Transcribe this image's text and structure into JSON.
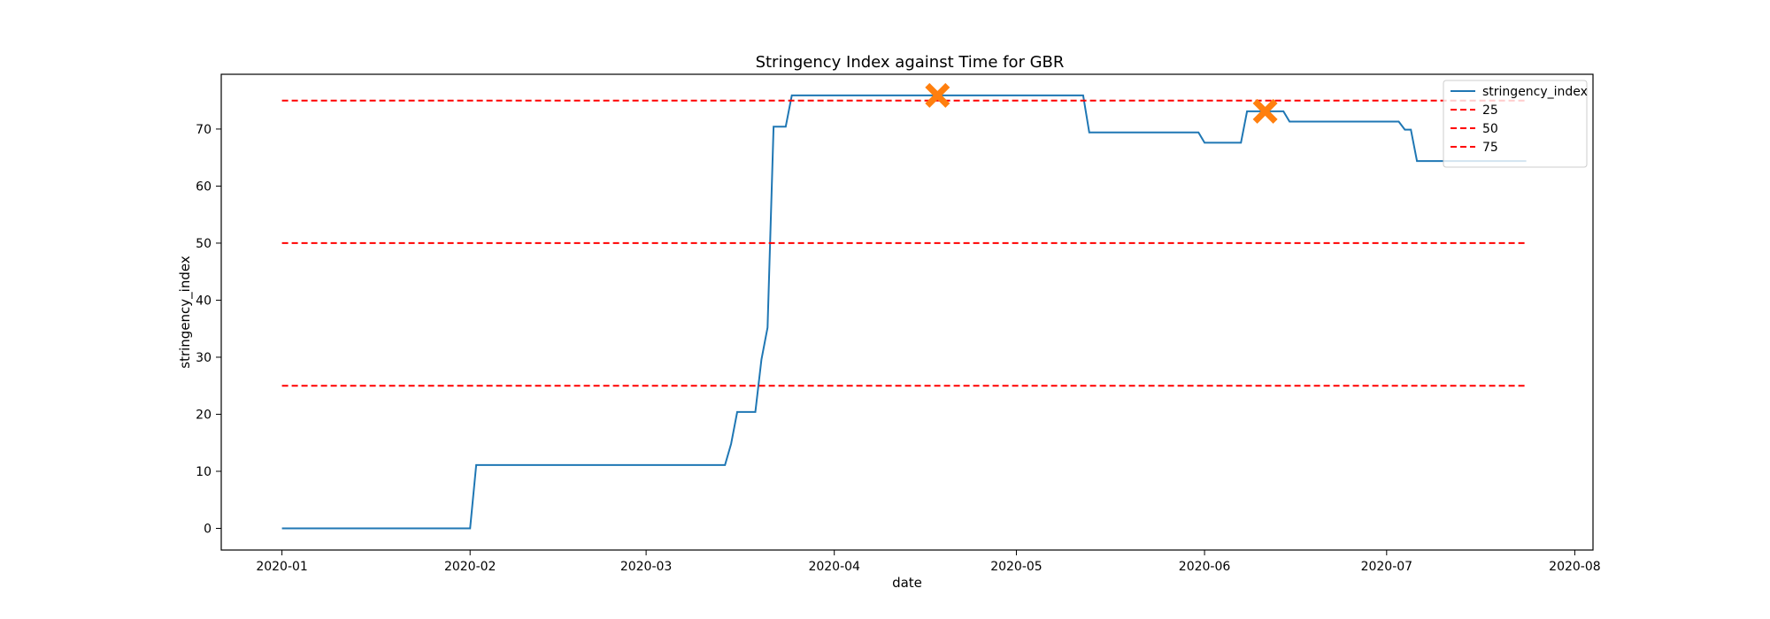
{
  "chart_data": {
    "type": "line",
    "title": "Stringency Index against Time for GBR",
    "xlabel": "date",
    "ylabel": "stringency_index",
    "xlim": [
      "2019-12-22",
      "2020-08-04"
    ],
    "ylim": [
      -3.8,
      79.6
    ],
    "x_ticks": [
      "2020-01",
      "2020-02",
      "2020-03",
      "2020-04",
      "2020-05",
      "2020-06",
      "2020-07",
      "2020-08"
    ],
    "y_ticks": [
      0,
      10,
      20,
      30,
      40,
      50,
      60,
      70
    ],
    "grid": false,
    "legend_position": "top-right",
    "series": [
      {
        "name": "stringency_index",
        "color": "#1f77b4",
        "points": [
          [
            "2020-01-01",
            0
          ],
          [
            "2020-02-01",
            0
          ],
          [
            "2020-02-02",
            11.1
          ],
          [
            "2020-03-14",
            11.1
          ],
          [
            "2020-03-15",
            14.8
          ],
          [
            "2020-03-16",
            20.4
          ],
          [
            "2020-03-19",
            20.4
          ],
          [
            "2020-03-20",
            29.6
          ],
          [
            "2020-03-21",
            35.2
          ],
          [
            "2020-03-22",
            70.4
          ],
          [
            "2020-03-24",
            70.4
          ],
          [
            "2020-03-25",
            75.9
          ],
          [
            "2020-05-12",
            75.9
          ],
          [
            "2020-05-13",
            69.4
          ],
          [
            "2020-05-31",
            69.4
          ],
          [
            "2020-06-01",
            67.6
          ],
          [
            "2020-06-07",
            67.6
          ],
          [
            "2020-06-08",
            73.1
          ],
          [
            "2020-06-14",
            73.1
          ],
          [
            "2020-06-15",
            71.3
          ],
          [
            "2020-07-03",
            71.3
          ],
          [
            "2020-07-04",
            69.9
          ],
          [
            "2020-07-05",
            69.9
          ],
          [
            "2020-07-06",
            64.4
          ],
          [
            "2020-07-24",
            64.4
          ]
        ]
      },
      {
        "name": "25",
        "color": "#ff0000",
        "dashed": true,
        "points": [
          [
            "2020-01-01",
            25
          ],
          [
            "2020-07-24",
            25
          ]
        ]
      },
      {
        "name": "50",
        "color": "#ff0000",
        "dashed": true,
        "points": [
          [
            "2020-01-01",
            50
          ],
          [
            "2020-07-24",
            50
          ]
        ]
      },
      {
        "name": "75",
        "color": "#ff0000",
        "dashed": true,
        "points": [
          [
            "2020-01-01",
            75
          ],
          [
            "2020-07-24",
            75
          ]
        ]
      }
    ],
    "markers": [
      {
        "x": "2020-04-18",
        "y": 75.9,
        "symbol": "X",
        "color": "#ff7f0e"
      },
      {
        "x": "2020-06-11",
        "y": 73.1,
        "symbol": "X",
        "color": "#ff7f0e"
      }
    ]
  }
}
